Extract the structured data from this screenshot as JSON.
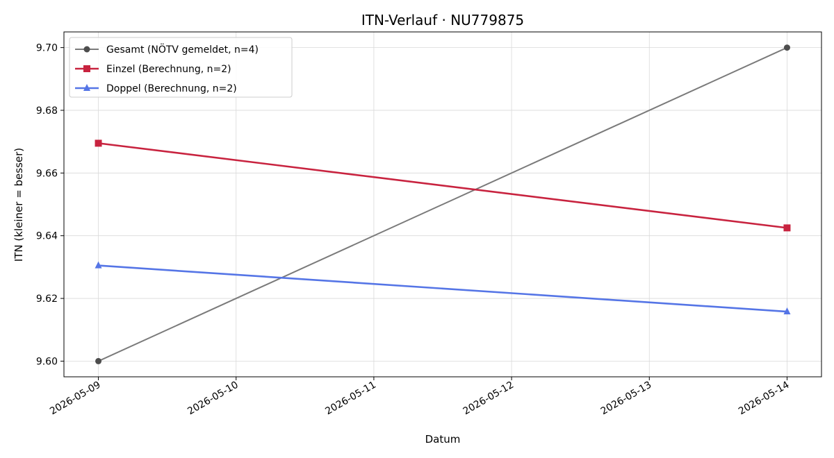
{
  "chart_data": {
    "type": "line",
    "title": "ITN-Verlauf · NU779875",
    "xlabel": "Datum",
    "ylabel": "ITN  (kleiner = besser)",
    "x_ticks": [
      "2026-05-09",
      "2026-05-10",
      "2026-05-11",
      "2026-05-12",
      "2026-05-13",
      "2026-05-14"
    ],
    "y_ticks": [
      "9.60",
      "9.62",
      "9.64",
      "9.66",
      "9.68",
      "9.70"
    ],
    "xlim": [
      "2026-05-08 18:00",
      "2026-05-14 06:00"
    ],
    "ylim": [
      9.595,
      9.705
    ],
    "grid": true,
    "legend_position": "upper-left",
    "series": [
      {
        "name": "Gesamt (NÖTV gemeldet, n=4)",
        "color": "#7a7a7a",
        "marker_color": "#4d4d4d",
        "marker": "circle",
        "x": [
          "2026-05-09",
          "2026-05-14"
        ],
        "values": [
          9.6,
          9.7
        ]
      },
      {
        "name": "Einzel (Berechnung, n=2)",
        "color": "#c8233f",
        "marker_color": "#c8233f",
        "marker": "square",
        "x": [
          "2026-05-09",
          "2026-05-14"
        ],
        "values": [
          9.6695,
          9.6425
        ]
      },
      {
        "name": "Doppel (Berechnung, n=2)",
        "color": "#5575e6",
        "marker_color": "#5575e6",
        "marker": "triangle",
        "x": [
          "2026-05-09",
          "2026-05-14"
        ],
        "values": [
          9.6305,
          9.6158
        ]
      }
    ]
  }
}
